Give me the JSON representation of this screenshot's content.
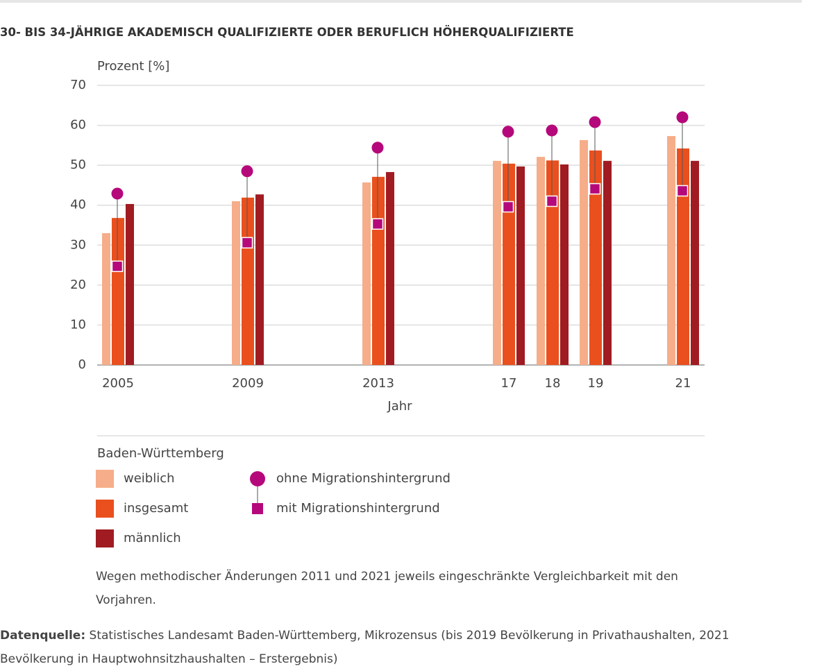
{
  "chart_data": {
    "type": "bar",
    "title": "30- BIS 34-JÄHRIGE AKADEMISCH QUALIFIZIERTE ODER BERUFLICH HÖHERQUALIFIZIERTE",
    "y_label": "Prozent [%]",
    "x_label": "Jahr",
    "categories": [
      "2005",
      "2009",
      "2013",
      "17",
      "18",
      "19",
      "21"
    ],
    "series": [
      {
        "name": "weiblich",
        "color": "#f6ad89",
        "mark": "bar",
        "values": [
          33.0,
          41.0,
          45.7,
          51.1,
          52.1,
          56.3,
          57.3
        ]
      },
      {
        "name": "insgesamt",
        "color": "#e9501e",
        "mark": "bar",
        "values": [
          36.8,
          41.9,
          47.1,
          50.4,
          51.2,
          53.7,
          54.2
        ]
      },
      {
        "name": "männlich",
        "color": "#a01c22",
        "mark": "bar",
        "values": [
          40.3,
          42.7,
          48.3,
          49.7,
          50.2,
          51.1,
          51.1
        ]
      },
      {
        "name": "ohne Migrationshintergrund",
        "color": "#b5087a",
        "mark": "circle",
        "values": [
          42.9,
          48.5,
          54.4,
          58.4,
          58.7,
          60.8,
          62.0
        ]
      },
      {
        "name": "mit Migrationshintergrund",
        "color": "#b5087a",
        "mark": "square",
        "values": [
          24.7,
          30.6,
          35.3,
          39.6,
          41.0,
          44.1,
          43.6
        ]
      }
    ],
    "ylim": [
      0,
      70
    ],
    "yticks": [
      0,
      10,
      20,
      30,
      40,
      50,
      60,
      70
    ],
    "grid": true,
    "legend_title": "Baden-Württemberg",
    "note": "Wegen methodischer Änderungen 2011 und 2021 jeweils eingeschränkte Vergleichbarkeit mit den Vorjahren.",
    "source_label": "Datenquelle:",
    "source_text": "Statistisches Landesamt Baden-Württemberg, Mikrozensus (bis 2019 Bevölkerung in Privathaushalten, 2021 Bevölkerung in Hauptwohnsitzhaushalten – Erstergebnis)"
  }
}
